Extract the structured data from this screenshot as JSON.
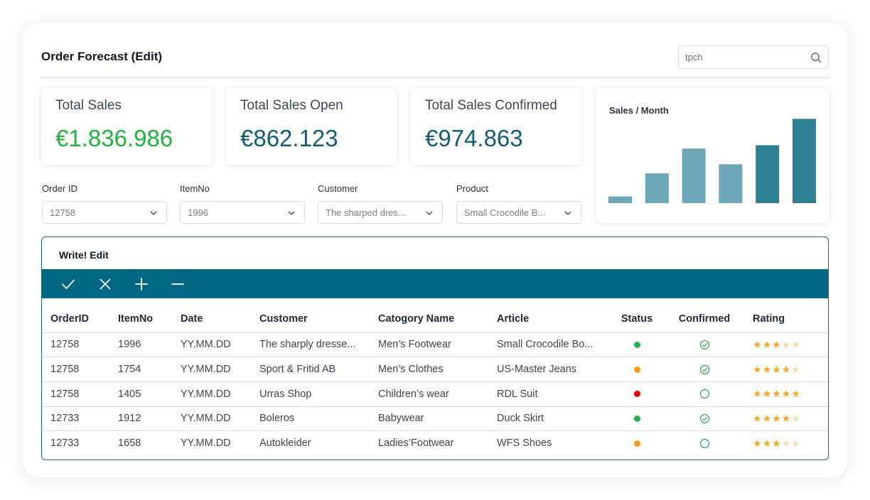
{
  "page": {
    "title": "Order Forecast (Edit)"
  },
  "search": {
    "value": "tpch"
  },
  "kpis": [
    {
      "label": "Total Sales",
      "value": "€1.836.986"
    },
    {
      "label": "Total Sales Open",
      "value": "€862.123"
    },
    {
      "label": "Total Sales Confirmed",
      "value": "€974.863"
    }
  ],
  "chart_data": {
    "type": "bar",
    "title": "Sales / Month",
    "categories": [
      "",
      "",
      "",
      "",
      "",
      ""
    ],
    "values": [
      8,
      36,
      66,
      47,
      70,
      102
    ],
    "ylim": [
      0,
      110
    ],
    "colors": [
      "#6ba7b6",
      "#6ba7b6",
      "#6ba7b6",
      "#6ba7b6",
      "#2e7f92",
      "#2e7f92"
    ],
    "grid": false,
    "xlabel": "",
    "ylabel": ""
  },
  "filters": [
    {
      "label": "Order ID",
      "value": "12758"
    },
    {
      "label": "ItemNo",
      "value": "1996"
    },
    {
      "label": "Customer",
      "value": "The sharped dres..."
    },
    {
      "label": "Product",
      "value": "Small Crocodile B..."
    }
  ],
  "grid": {
    "title": "Write! Edit",
    "toolbar": [
      "check-icon",
      "close-icon",
      "plus-icon",
      "minus-icon"
    ],
    "columns": [
      "OrderID",
      "ItemNo",
      "Date",
      "Customer",
      "Catogory Name",
      "Article",
      "Status",
      "Confirmed",
      "Rating"
    ],
    "rows": [
      {
        "order_id": "12758",
        "item_no": "1996",
        "date": "YY.MM.DD",
        "customer": "The sharply dresse...",
        "category": "Men’s Footwear",
        "article": "Small Crocodile Bo...",
        "status_color": "#22b14c",
        "confirmed": true,
        "rating": 3
      },
      {
        "order_id": "12758",
        "item_no": "1754",
        "date": "YY.MM.DD",
        "customer": "Sport & Fritid AB",
        "category": "Men’s Clothes",
        "article": "US-Master Jeans",
        "status_color": "#f39c12",
        "confirmed": true,
        "rating": 4
      },
      {
        "order_id": "12758",
        "item_no": "1405",
        "date": "YY.MM.DD",
        "customer": "Urras Shop",
        "category": "Children’s wear",
        "article": "RDL Suit",
        "status_color": "#e30613",
        "confirmed": false,
        "rating": 5
      },
      {
        "order_id": "12733",
        "item_no": "1912",
        "date": "YY.MM.DD",
        "customer": "Boleros",
        "category": "Babywear",
        "article": "Duck Skirt",
        "status_color": "#22b14c",
        "confirmed": true,
        "rating": 4
      },
      {
        "order_id": "12733",
        "item_no": "1658",
        "date": "YY.MM.DD",
        "customer": "Autokleider",
        "category": "Ladies’Footwear",
        "article": "WFS Shoes",
        "status_color": "#f39c12",
        "confirmed": false,
        "rating": 3
      }
    ]
  },
  "colors": {
    "accent": "#006783",
    "positive": "#20b33f",
    "kpi_value": "#115e73",
    "confirmed": "#22a04b"
  }
}
